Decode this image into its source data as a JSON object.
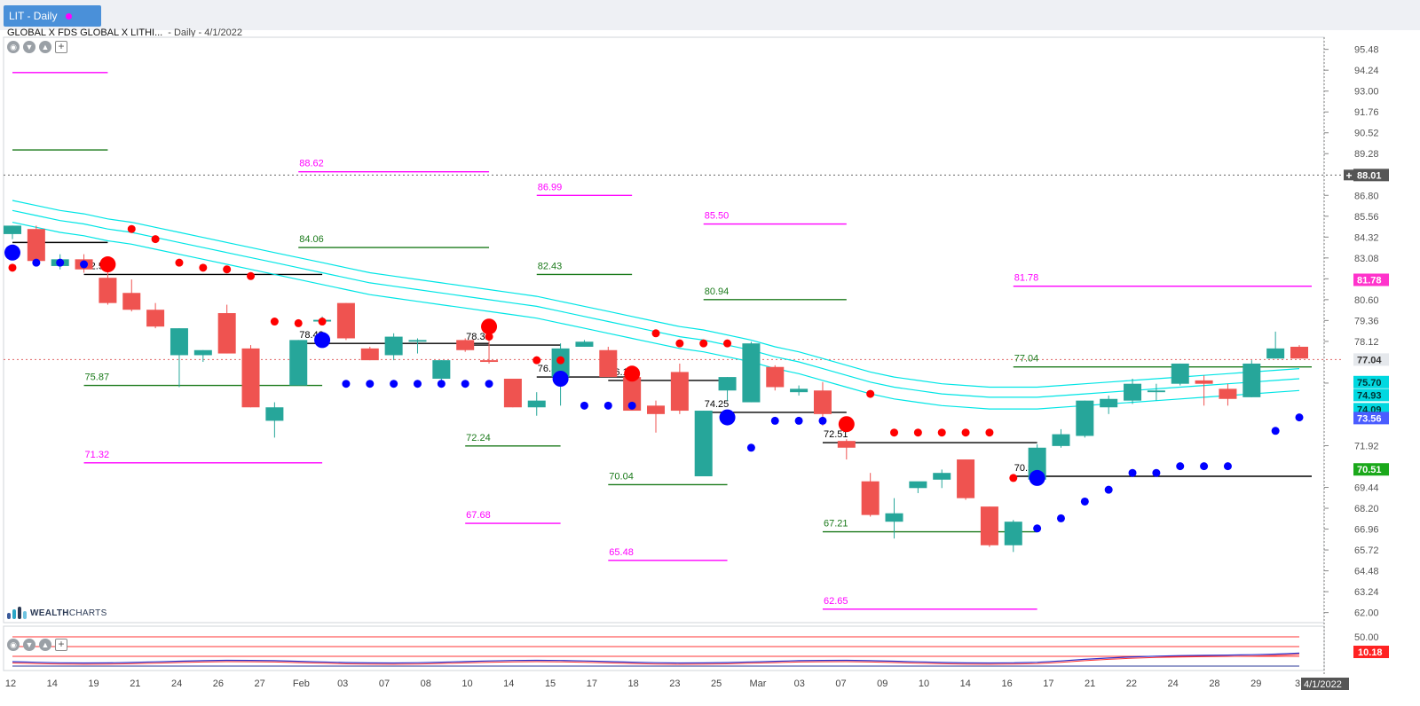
{
  "window": {
    "tab_label": "LIT - Daily",
    "symbol_name": "GLOBAL X FDS GLOBAL X LITHI...",
    "period_date": "- Daily - 4/1/2022",
    "logo_prefix": "WEALTH",
    "logo_suffix": "CHARTS"
  },
  "colors": {
    "up": "#26a69a",
    "down": "#ef5350",
    "channel": "#00e5e5",
    "magenta": "#ff00ff",
    "green_level": "#1b7a1b",
    "red_dot": "#ff0000",
    "blue_dot": "#0000ff"
  },
  "chart_data": {
    "type": "candlestick",
    "ylim": [
      61.4,
      96.2
    ],
    "y_ticks": [
      "95.48",
      "94.24",
      "93.00",
      "91.76",
      "90.52",
      "89.28",
      "86.80",
      "85.56",
      "84.32",
      "83.08",
      "81.84",
      "80.60",
      "79.36",
      "78.12",
      "75.64",
      "71.92",
      "69.44",
      "68.20",
      "66.96",
      "65.72",
      "64.48",
      "63.24",
      "62.00"
    ],
    "x_tick_labels": [
      "12",
      "14",
      "19",
      "21",
      "24",
      "26",
      "27",
      "Feb",
      "03",
      "07",
      "08",
      "10",
      "14",
      "15",
      "17",
      "18",
      "23",
      "25",
      "Mar",
      "03",
      "07",
      "09",
      "10",
      "14",
      "16",
      "17",
      "21",
      "22",
      "24",
      "28",
      "29",
      "3"
    ],
    "candles": [
      [
        84.5,
        85.0,
        84.2,
        85.0
      ],
      [
        84.8,
        85.0,
        82.8,
        82.9
      ],
      [
        82.6,
        83.3,
        82.4,
        83.0
      ],
      [
        83.0,
        83.3,
        82.2,
        82.4
      ],
      [
        81.9,
        82.3,
        80.3,
        80.4
      ],
      [
        81.0,
        81.8,
        79.9,
        80.0
      ],
      [
        80.0,
        80.4,
        78.9,
        79.0
      ],
      [
        77.3,
        78.9,
        75.4,
        78.9
      ],
      [
        77.3,
        77.6,
        76.9,
        77.6
      ],
      [
        79.8,
        80.3,
        77.4,
        77.4
      ],
      [
        77.7,
        77.9,
        74.2,
        74.2
      ],
      [
        73.4,
        74.5,
        72.4,
        74.2
      ],
      [
        75.5,
        78.2,
        75.5,
        78.2
      ],
      [
        79.3,
        79.6,
        79.3,
        79.4
      ],
      [
        80.4,
        80.4,
        78.2,
        78.3
      ],
      [
        77.7,
        77.8,
        77.0,
        77.0
      ],
      [
        77.3,
        78.6,
        77.0,
        78.4
      ],
      [
        78.1,
        78.3,
        77.4,
        78.2
      ],
      [
        75.9,
        77.0,
        75.6,
        77.0
      ],
      [
        78.2,
        78.3,
        77.5,
        77.6
      ],
      [
        77.0,
        78.3,
        76.8,
        76.9
      ],
      [
        75.9,
        75.9,
        74.2,
        74.2
      ],
      [
        74.2,
        75.1,
        73.7,
        74.6
      ],
      [
        76.0,
        78.0,
        74.3,
        77.7
      ],
      [
        77.8,
        78.2,
        77.8,
        78.1
      ],
      [
        77.6,
        77.8,
        76.0,
        76.0
      ],
      [
        76.0,
        76.5,
        74.0,
        74.0
      ],
      [
        74.3,
        74.6,
        72.7,
        73.8
      ],
      [
        76.3,
        76.8,
        73.8,
        74.0
      ],
      [
        70.1,
        74.0,
        70.1,
        74.0
      ],
      [
        75.2,
        76.0,
        74.6,
        76.0
      ],
      [
        74.5,
        78.1,
        74.5,
        78.0
      ],
      [
        76.6,
        76.7,
        75.2,
        75.4
      ],
      [
        75.1,
        75.5,
        74.9,
        75.3
      ],
      [
        75.2,
        75.7,
        73.1,
        73.8
      ],
      [
        72.2,
        72.3,
        71.1,
        71.8
      ],
      [
        69.8,
        70.3,
        67.7,
        67.8
      ],
      [
        67.4,
        68.8,
        66.4,
        67.9
      ],
      [
        69.4,
        69.6,
        69.1,
        69.8
      ],
      [
        69.9,
        70.5,
        69.4,
        70.3
      ],
      [
        71.1,
        71.1,
        68.7,
        68.8
      ],
      [
        68.3,
        68.3,
        65.9,
        66.0
      ],
      [
        66.0,
        67.5,
        65.6,
        67.4
      ],
      [
        69.9,
        72.0,
        69.9,
        71.8
      ],
      [
        71.9,
        72.9,
        71.8,
        72.6
      ],
      [
        72.5,
        74.6,
        72.4,
        74.6
      ],
      [
        74.2,
        74.9,
        73.8,
        74.7
      ],
      [
        74.6,
        75.9,
        74.4,
        75.6
      ],
      [
        75.1,
        75.6,
        74.6,
        75.2
      ],
      [
        75.6,
        76.8,
        75.5,
        76.8
      ],
      [
        75.8,
        76.1,
        74.3,
        75.6
      ],
      [
        75.3,
        75.6,
        74.3,
        74.7
      ],
      [
        74.8,
        77.0,
        74.8,
        76.8
      ],
      [
        77.1,
        78.7,
        77.1,
        77.7
      ],
      [
        77.8,
        77.9,
        77.2,
        77.1
      ]
    ],
    "channel_upper": [
      86.5,
      86.2,
      85.9,
      85.7,
      85.4,
      85.2,
      84.9,
      84.6,
      84.3,
      84.0,
      83.7,
      83.4,
      83.1,
      82.8,
      82.5,
      82.2,
      82.0,
      81.8,
      81.6,
      81.4,
      81.2,
      81.0,
      80.8,
      80.5,
      80.2,
      79.9,
      79.6,
      79.3,
      79.0,
      78.8,
      78.5,
      78.2,
      77.8,
      77.5,
      77.1,
      76.7,
      76.3,
      76.0,
      75.8,
      75.6,
      75.5,
      75.4,
      75.4,
      75.4,
      75.5,
      75.6,
      75.7,
      75.8,
      75.9,
      76.0,
      76.1,
      76.2,
      76.3,
      76.4,
      76.5
    ],
    "channel_mid": [
      85.9,
      85.6,
      85.3,
      85.1,
      84.8,
      84.6,
      84.3,
      84.0,
      83.7,
      83.4,
      83.1,
      82.8,
      82.5,
      82.2,
      81.9,
      81.6,
      81.4,
      81.2,
      81.0,
      80.8,
      80.6,
      80.4,
      80.2,
      79.9,
      79.6,
      79.3,
      79.0,
      78.7,
      78.4,
      78.2,
      77.9,
      77.6,
      77.2,
      76.9,
      76.5,
      76.1,
      75.7,
      75.4,
      75.2,
      75.0,
      74.9,
      74.8,
      74.8,
      74.8,
      74.9,
      75.0,
      75.1,
      75.2,
      75.3,
      75.4,
      75.5,
      75.6,
      75.7,
      75.8,
      75.9
    ],
    "channel_lower": [
      85.2,
      84.9,
      84.6,
      84.4,
      84.1,
      83.9,
      83.6,
      83.3,
      83.0,
      82.7,
      82.4,
      82.1,
      81.8,
      81.5,
      81.2,
      80.9,
      80.7,
      80.5,
      80.3,
      80.1,
      79.9,
      79.7,
      79.5,
      79.2,
      78.9,
      78.6,
      78.3,
      78.0,
      77.7,
      77.5,
      77.2,
      76.9,
      76.5,
      76.2,
      75.8,
      75.4,
      75.0,
      74.7,
      74.5,
      74.3,
      74.2,
      74.1,
      74.1,
      74.1,
      74.2,
      74.3,
      74.4,
      74.5,
      74.6,
      74.7,
      74.8,
      74.9,
      75.0,
      75.1,
      75.2
    ],
    "dots_red_small": [
      [
        0,
        82.5
      ],
      [
        5,
        84.8
      ],
      [
        6,
        84.2
      ],
      [
        7,
        82.8
      ],
      [
        8,
        82.5
      ],
      [
        9,
        82.4
      ],
      [
        10,
        82.0
      ],
      [
        11,
        79.3
      ],
      [
        12,
        79.2
      ],
      [
        13,
        79.3
      ],
      [
        20,
        78.4
      ],
      [
        22,
        77.0
      ],
      [
        23,
        77.0
      ],
      [
        27,
        78.6
      ],
      [
        28,
        78.0
      ],
      [
        29,
        78.0
      ],
      [
        30,
        78.0
      ],
      [
        36,
        75.0
      ],
      [
        37,
        72.7
      ],
      [
        38,
        72.7
      ],
      [
        39,
        72.7
      ],
      [
        40,
        72.7
      ],
      [
        41,
        72.7
      ],
      [
        42,
        70.0
      ]
    ],
    "dots_red_big": [
      [
        4,
        82.7
      ],
      [
        20,
        79.0
      ],
      [
        26,
        76.2
      ],
      [
        35,
        73.2
      ]
    ],
    "dots_blue_small": [
      [
        1,
        82.8
      ],
      [
        2,
        82.8
      ],
      [
        3,
        82.7
      ],
      [
        14,
        75.6
      ],
      [
        15,
        75.6
      ],
      [
        16,
        75.6
      ],
      [
        17,
        75.6
      ],
      [
        18,
        75.6
      ],
      [
        19,
        75.6
      ],
      [
        20,
        75.6
      ],
      [
        24,
        74.3
      ],
      [
        25,
        74.3
      ],
      [
        26,
        74.3
      ],
      [
        31,
        71.8
      ],
      [
        32,
        73.4
      ],
      [
        33,
        73.4
      ],
      [
        34,
        73.4
      ],
      [
        43,
        67.0
      ],
      [
        44,
        67.6
      ],
      [
        45,
        68.6
      ],
      [
        46,
        69.3
      ],
      [
        47,
        70.3
      ],
      [
        48,
        70.3
      ],
      [
        49,
        70.7
      ],
      [
        50,
        70.7
      ],
      [
        51,
        70.7
      ],
      [
        53,
        72.8
      ],
      [
        54,
        73.6
      ]
    ],
    "dots_blue_big": [
      [
        0,
        83.4
      ],
      [
        13,
        78.2
      ],
      [
        23,
        75.9
      ],
      [
        30,
        73.6
      ],
      [
        43,
        70.0
      ]
    ],
    "levels_magenta": [
      {
        "x0": 0,
        "x1": 4,
        "y": 94.1,
        "label": ""
      },
      {
        "x0": 12,
        "x1": 20,
        "y": 88.2,
        "label": "88.62"
      },
      {
        "x0": 22,
        "x1": 26,
        "y": 86.8,
        "label": "86.99"
      },
      {
        "x0": 29,
        "x1": 35,
        "y": 85.1,
        "label": "85.50"
      },
      {
        "x0": 42,
        "x1": 55,
        "y": 81.4,
        "label": "81.78"
      },
      {
        "x0": 3,
        "x1": 13,
        "y": 70.9,
        "label": "71.32"
      },
      {
        "x0": 19,
        "x1": 23,
        "y": 67.3,
        "label": "67.68"
      },
      {
        "x0": 25,
        "x1": 30,
        "y": 65.1,
        "label": "65.48"
      },
      {
        "x0": 34,
        "x1": 43,
        "y": 62.2,
        "label": "62.65"
      }
    ],
    "levels_green": [
      {
        "x0": 0,
        "x1": 4,
        "y": 89.5,
        "label": ""
      },
      {
        "x0": 12,
        "x1": 20,
        "y": 83.7,
        "label": "84.06"
      },
      {
        "x0": 22,
        "x1": 26,
        "y": 82.1,
        "label": "82.43"
      },
      {
        "x0": 29,
        "x1": 35,
        "y": 80.6,
        "label": "80.94"
      },
      {
        "x0": 42,
        "x1": 55,
        "y": 76.6,
        "label": "77.04"
      },
      {
        "x0": 3,
        "x1": 13,
        "y": 75.5,
        "label": "75.87"
      },
      {
        "x0": 19,
        "x1": 23,
        "y": 71.9,
        "label": "72.24"
      },
      {
        "x0": 25,
        "x1": 30,
        "y": 69.6,
        "label": "70.04"
      },
      {
        "x0": 34,
        "x1": 43,
        "y": 66.8,
        "label": "67.21"
      }
    ],
    "levels_black": [
      {
        "x0": 0,
        "x1": 4,
        "y": 84.0,
        "label": ""
      },
      {
        "x0": 3,
        "x1": 13,
        "y": 82.1,
        "label": "82.52"
      },
      {
        "x0": 12,
        "x1": 20,
        "y": 78.0,
        "label": "78.42"
      },
      {
        "x0": 19,
        "x1": 23,
        "y": 77.9,
        "label": "78.31"
      },
      {
        "x0": 22,
        "x1": 26,
        "y": 76.0,
        "label": "76.33"
      },
      {
        "x0": 25,
        "x1": 30,
        "y": 75.8,
        "label": "76.19"
      },
      {
        "x0": 29,
        "x1": 35,
        "y": 73.9,
        "label": "74.25"
      },
      {
        "x0": 34,
        "x1": 43,
        "y": 72.1,
        "label": "72.51"
      },
      {
        "x0": 42,
        "x1": 55,
        "y": 70.1,
        "label": "70.51"
      }
    ],
    "price_badges": [
      {
        "value": "88.01",
        "y": 88.01,
        "color": "#555555",
        "text": "#ffffff"
      },
      {
        "value": "81.78",
        "y": 81.78,
        "color": "#ff33cc",
        "text": "#ffffff"
      },
      {
        "value": "77.04",
        "y": 77.04,
        "color": "#e5e8ec",
        "text": "#333333"
      },
      {
        "value": "75.70",
        "y": 75.7,
        "color": "#00d8e0",
        "text": "#003333"
      },
      {
        "value": "74.93",
        "y": 74.93,
        "color": "#00d8e0",
        "text": "#003333"
      },
      {
        "value": "74.09",
        "y": 74.09,
        "color": "#00d8e0",
        "text": "#003333"
      },
      {
        "value": "73.56",
        "y": 73.56,
        "color": "#4a5cff",
        "text": "#ffffff"
      },
      {
        "value": "70.51",
        "y": 70.51,
        "color": "#1aa81a",
        "text": "#ffffff"
      }
    ],
    "crosshair_y": 88.01,
    "last_price_y": 77.04,
    "date_badge": "4/1/2022",
    "sub_panel": {
      "y_ticks": [
        "50.00"
      ],
      "badge": "10.18"
    }
  }
}
